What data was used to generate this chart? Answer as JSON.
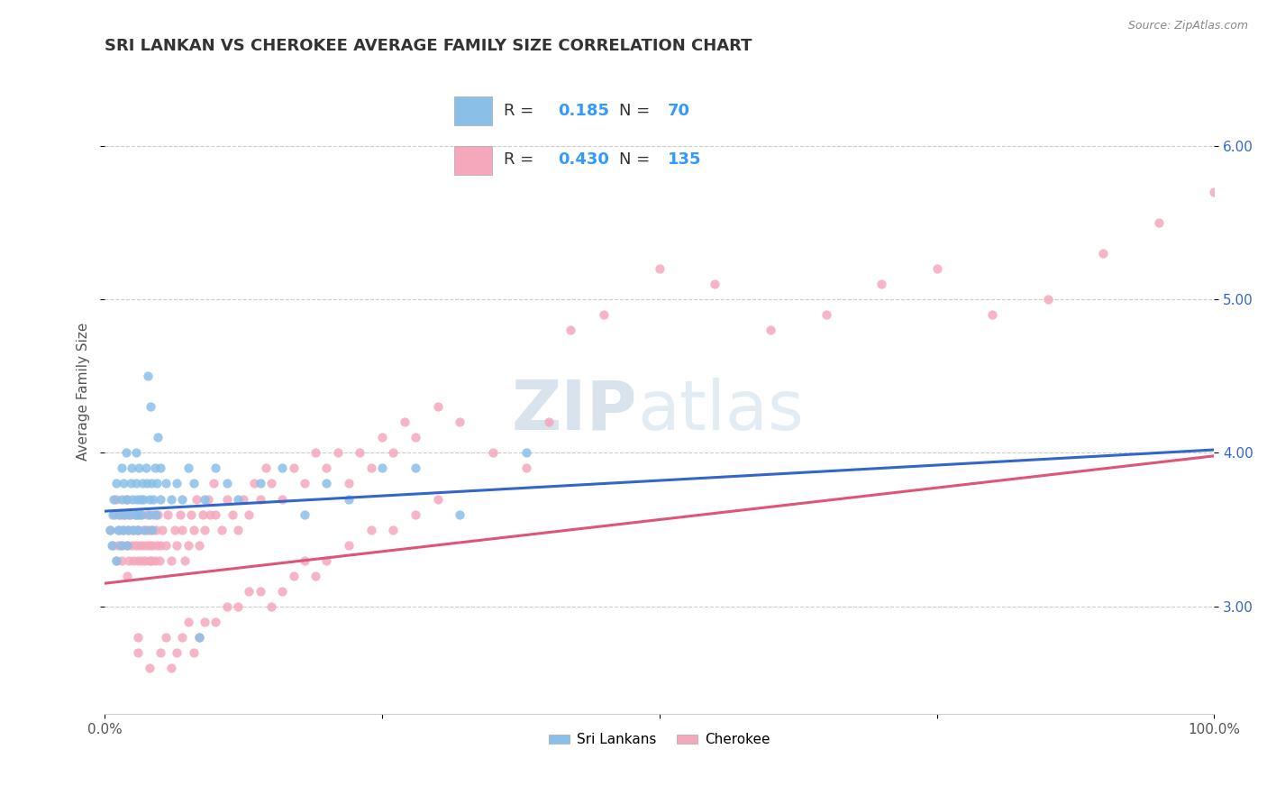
{
  "title": "SRI LANKAN VS CHEROKEE AVERAGE FAMILY SIZE CORRELATION CHART",
  "source_text": "Source: ZipAtlas.com",
  "ylabel": "Average Family Size",
  "xlim": [
    0,
    1
  ],
  "ylim": [
    2.3,
    6.5
  ],
  "yticks": [
    3.0,
    4.0,
    5.0,
    6.0
  ],
  "xticks": [
    0.0,
    0.25,
    0.5,
    0.75,
    1.0
  ],
  "xtick_labels": [
    "0.0%",
    "",
    "",
    "",
    "100.0%"
  ],
  "sri_lankan_color": "#8abfe8",
  "cherokee_color": "#f5a8bc",
  "sri_lankan_line_color": "#3366cc",
  "cherokee_line_color": "#dd5577",
  "R_sri": 0.185,
  "N_sri": 70,
  "R_cher": 0.43,
  "N_cher": 135,
  "watermark": "ZIPatlas",
  "background_color": "#ffffff",
  "grid_color": "#cccccc",
  "title_fontsize": 13,
  "axis_label_fontsize": 11,
  "tick_fontsize": 11,
  "legend_fontsize": 13,
  "sri_line_x0": 0.0,
  "sri_line_y0": 3.62,
  "sri_line_x1": 1.0,
  "sri_line_y1": 4.02,
  "cher_line_x0": 0.0,
  "cher_line_y0": 3.15,
  "cher_line_x1": 1.0,
  "cher_line_y1": 3.98,
  "sri_lankans_x": [
    0.005,
    0.006,
    0.007,
    0.008,
    0.01,
    0.01,
    0.012,
    0.013,
    0.014,
    0.015,
    0.015,
    0.016,
    0.017,
    0.018,
    0.019,
    0.02,
    0.02,
    0.021,
    0.022,
    0.023,
    0.024,
    0.025,
    0.026,
    0.027,
    0.028,
    0.028,
    0.029,
    0.03,
    0.03,
    0.031,
    0.032,
    0.033,
    0.034,
    0.035,
    0.036,
    0.037,
    0.038,
    0.039,
    0.04,
    0.04,
    0.041,
    0.042,
    0.043,
    0.044,
    0.045,
    0.046,
    0.047,
    0.048,
    0.05,
    0.05,
    0.055,
    0.06,
    0.065,
    0.07,
    0.075,
    0.08,
    0.085,
    0.09,
    0.1,
    0.11,
    0.12,
    0.14,
    0.16,
    0.18,
    0.2,
    0.22,
    0.25,
    0.28,
    0.32,
    0.38
  ],
  "sri_lankans_y": [
    3.5,
    3.4,
    3.6,
    3.7,
    3.3,
    3.8,
    3.5,
    3.6,
    3.4,
    3.7,
    3.9,
    3.5,
    3.8,
    3.6,
    4.0,
    3.4,
    3.7,
    3.5,
    3.6,
    3.8,
    3.9,
    3.7,
    3.5,
    3.6,
    3.8,
    4.0,
    3.7,
    3.5,
    3.6,
    3.9,
    3.7,
    3.6,
    3.8,
    3.7,
    3.5,
    3.9,
    3.8,
    4.5,
    3.6,
    3.7,
    4.3,
    3.8,
    3.5,
    3.7,
    3.9,
    3.6,
    3.8,
    4.1,
    3.7,
    3.9,
    3.8,
    3.7,
    3.8,
    3.7,
    3.9,
    3.8,
    2.8,
    3.7,
    3.9,
    3.8,
    3.7,
    3.8,
    3.9,
    3.6,
    3.8,
    3.7,
    3.9,
    3.9,
    3.6,
    4.0
  ],
  "cherokee_x": [
    0.005,
    0.007,
    0.009,
    0.01,
    0.01,
    0.012,
    0.013,
    0.014,
    0.015,
    0.016,
    0.017,
    0.018,
    0.019,
    0.02,
    0.02,
    0.021,
    0.022,
    0.023,
    0.024,
    0.025,
    0.026,
    0.027,
    0.028,
    0.029,
    0.03,
    0.03,
    0.031,
    0.032,
    0.033,
    0.034,
    0.035,
    0.036,
    0.037,
    0.038,
    0.039,
    0.04,
    0.04,
    0.041,
    0.042,
    0.043,
    0.044,
    0.045,
    0.046,
    0.047,
    0.048,
    0.049,
    0.05,
    0.052,
    0.055,
    0.057,
    0.06,
    0.063,
    0.065,
    0.068,
    0.07,
    0.072,
    0.075,
    0.078,
    0.08,
    0.083,
    0.085,
    0.088,
    0.09,
    0.093,
    0.095,
    0.098,
    0.1,
    0.105,
    0.11,
    0.115,
    0.12,
    0.125,
    0.13,
    0.135,
    0.14,
    0.145,
    0.15,
    0.16,
    0.17,
    0.18,
    0.19,
    0.2,
    0.21,
    0.22,
    0.23,
    0.24,
    0.25,
    0.26,
    0.27,
    0.28,
    0.3,
    0.32,
    0.35,
    0.38,
    0.4,
    0.42,
    0.45,
    0.5,
    0.55,
    0.6,
    0.65,
    0.7,
    0.75,
    0.8,
    0.85,
    0.9,
    0.95,
    1.0,
    0.03,
    0.03,
    0.04,
    0.05,
    0.055,
    0.06,
    0.065,
    0.07,
    0.075,
    0.08,
    0.085,
    0.09,
    0.1,
    0.11,
    0.12,
    0.13,
    0.14,
    0.15,
    0.16,
    0.17,
    0.18,
    0.19,
    0.2,
    0.22,
    0.24,
    0.26,
    0.28,
    0.3
  ],
  "cherokee_y": [
    3.5,
    3.4,
    3.6,
    3.3,
    3.7,
    3.4,
    3.5,
    3.6,
    3.3,
    3.4,
    3.5,
    3.6,
    3.7,
    3.2,
    3.4,
    3.5,
    3.3,
    3.6,
    3.4,
    3.5,
    3.3,
    3.4,
    3.6,
    3.5,
    3.3,
    3.5,
    3.4,
    3.6,
    3.3,
    3.4,
    3.5,
    3.3,
    3.4,
    3.6,
    3.5,
    3.3,
    3.4,
    3.5,
    3.3,
    3.4,
    3.6,
    3.3,
    3.5,
    3.4,
    3.6,
    3.3,
    3.4,
    3.5,
    3.4,
    3.6,
    3.3,
    3.5,
    3.4,
    3.6,
    3.5,
    3.3,
    3.4,
    3.6,
    3.5,
    3.7,
    3.4,
    3.6,
    3.5,
    3.7,
    3.6,
    3.8,
    3.6,
    3.5,
    3.7,
    3.6,
    3.5,
    3.7,
    3.6,
    3.8,
    3.7,
    3.9,
    3.8,
    3.7,
    3.9,
    3.8,
    4.0,
    3.9,
    4.0,
    3.8,
    4.0,
    3.9,
    4.1,
    4.0,
    4.2,
    4.1,
    4.3,
    4.2,
    4.0,
    3.9,
    4.2,
    4.8,
    4.9,
    5.2,
    5.1,
    4.8,
    4.9,
    5.1,
    5.2,
    4.9,
    5.0,
    5.3,
    5.5,
    5.7,
    2.7,
    2.8,
    2.6,
    2.7,
    2.8,
    2.6,
    2.7,
    2.8,
    2.9,
    2.7,
    2.8,
    2.9,
    2.9,
    3.0,
    3.0,
    3.1,
    3.1,
    3.0,
    3.1,
    3.2,
    3.3,
    3.2,
    3.3,
    3.4,
    3.5,
    3.5,
    3.6,
    3.7
  ]
}
